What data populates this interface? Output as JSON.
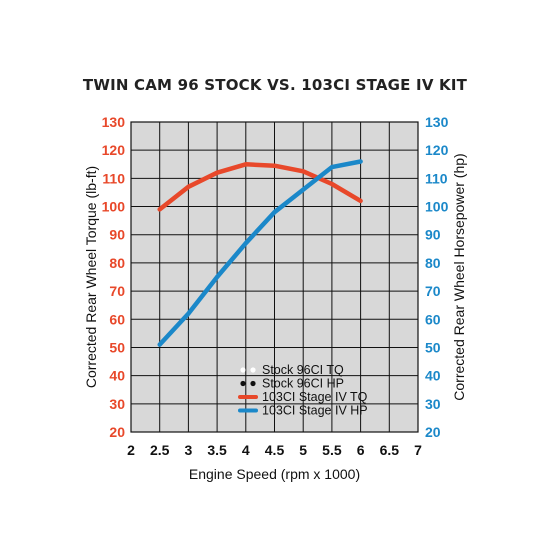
{
  "chart_data": {
    "type": "line",
    "title": "TWIN CAM 96 STOCK VS. 103CI STAGE IV KIT",
    "xlabel": "Engine Speed (rpm x 1000)",
    "ylabel_left": "Corrected Rear Wheel Torque (lb-ft)",
    "ylabel_right": "Corrected Rear Wheel Horsepower (hp)",
    "xlim": [
      2,
      7
    ],
    "x_ticks": [
      "2",
      "2.5",
      "3",
      "3.5",
      "4",
      "4.5",
      "5",
      "5.5",
      "6",
      "6.5",
      "7"
    ],
    "ylim_left": [
      20,
      130
    ],
    "ylim_right": [
      20,
      130
    ],
    "y_ticks": [
      "130",
      "120",
      "110",
      "100",
      "90",
      "80",
      "70",
      "60",
      "50",
      "40",
      "30",
      "20"
    ],
    "grid": true,
    "legend_position": "bottom-right",
    "colors": {
      "left_axis": "#e8482a",
      "right_axis": "#1b88c9",
      "plot_bg": "#d8d8d8",
      "grid": "#111111"
    },
    "series": [
      {
        "name": "Stock 96CI TQ",
        "axis": "left",
        "color": "#ffffff",
        "style": "dotted",
        "x": [],
        "values": []
      },
      {
        "name": "Stock 96CI HP",
        "axis": "right",
        "color": "#111111",
        "style": "dotted",
        "x": [],
        "values": []
      },
      {
        "name": "103CI Stage IV TQ",
        "axis": "left",
        "color": "#e8482a",
        "style": "solid",
        "x": [
          2.5,
          3,
          3.5,
          4,
          4.5,
          5,
          5.5,
          6
        ],
        "values": [
          99,
          107,
          112,
          115,
          114.5,
          112.5,
          108,
          102
        ]
      },
      {
        "name": "103CI Stage IV HP",
        "axis": "right",
        "color": "#1b88c9",
        "style": "solid",
        "x": [
          2.5,
          3,
          3.5,
          4,
          4.5,
          5,
          5.5,
          6
        ],
        "values": [
          51,
          62,
          75,
          87,
          98,
          106,
          114,
          116
        ]
      }
    ]
  }
}
